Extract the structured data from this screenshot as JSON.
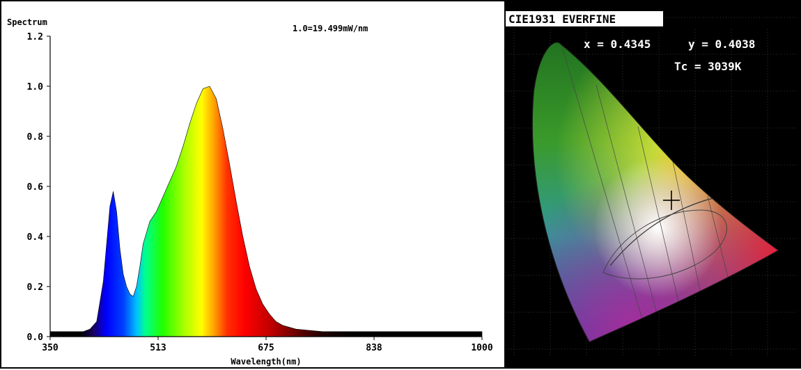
{
  "chart_data": [
    {
      "type": "area",
      "title": "Spectrum",
      "annotation": "1.0=19.499mW/nm",
      "xlabel": "Wavelength(nm)",
      "ylabel": "",
      "xlim": [
        350,
        1000
      ],
      "ylim": [
        0,
        1.2
      ],
      "xticks": [
        "350",
        "513",
        "675",
        "838",
        "1000"
      ],
      "yticks": [
        "0.0",
        "0.2",
        "0.4",
        "0.6",
        "0.8",
        "1.0",
        "1.2"
      ],
      "series": [
        {
          "x": [
            350,
            380,
            400,
            410,
            420,
            430,
            440,
            445,
            450,
            455,
            460,
            465,
            470,
            475,
            480,
            485,
            490,
            500,
            510,
            520,
            530,
            540,
            550,
            560,
            570,
            580,
            590,
            600,
            610,
            620,
            630,
            640,
            650,
            660,
            670,
            680,
            690,
            700,
            720,
            740,
            760,
            780,
            800,
            850,
            900,
            950,
            1000
          ],
          "values": [
            0.02,
            0.02,
            0.02,
            0.03,
            0.06,
            0.22,
            0.52,
            0.58,
            0.5,
            0.35,
            0.25,
            0.2,
            0.17,
            0.16,
            0.2,
            0.28,
            0.37,
            0.46,
            0.5,
            0.56,
            0.62,
            0.68,
            0.76,
            0.85,
            0.93,
            0.99,
            1.0,
            0.95,
            0.83,
            0.69,
            0.54,
            0.4,
            0.28,
            0.19,
            0.13,
            0.09,
            0.06,
            0.045,
            0.03,
            0.025,
            0.02,
            0.02,
            0.02,
            0.02,
            0.02,
            0.02,
            0.02
          ]
        }
      ]
    },
    {
      "type": "scatter",
      "title": "CIE1931 EVERFINE",
      "readout_x": "x = 0.4345",
      "readout_y": "y = 0.4038",
      "readout_tc": "Tc = 3039K",
      "point": {
        "x": 0.4345,
        "y": 0.4038
      },
      "xlim": [
        0,
        0.8
      ],
      "ylim": [
        0,
        0.9
      ]
    }
  ]
}
